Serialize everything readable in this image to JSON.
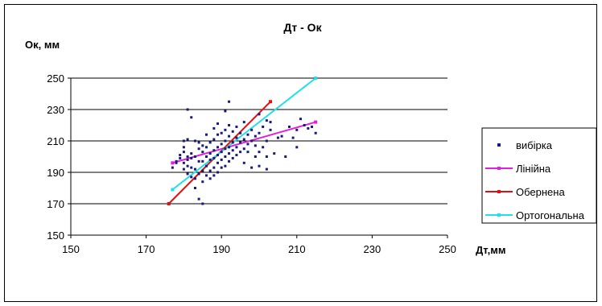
{
  "chart_data": {
    "type": "scatter",
    "title": "Дт - Ок",
    "xlabel": "Дт,мм",
    "ylabel": "Ок, мм",
    "xlim": [
      150,
      250
    ],
    "ylim": [
      150,
      250
    ],
    "xticks": [
      "150",
      "170",
      "190",
      "210",
      "230",
      "250"
    ],
    "yticks": [
      "150",
      "170",
      "190",
      "210",
      "230",
      "250"
    ],
    "grid": "horizontal",
    "legend_position": "right",
    "colors": {
      "sample": "#1a1a7a",
      "linear": "#e020e0",
      "inverse": "#e01010",
      "orthogonal": "#20e0e8"
    },
    "series": [
      {
        "name": "вибірка",
        "kind": "points",
        "points": [
          [
            177,
            193
          ],
          [
            178,
            196
          ],
          [
            178,
            197
          ],
          [
            179,
            199
          ],
          [
            179,
            201
          ],
          [
            180,
            192
          ],
          [
            180,
            196
          ],
          [
            180,
            203
          ],
          [
            180,
            206
          ],
          [
            180,
            210
          ],
          [
            181,
            189
          ],
          [
            181,
            194
          ],
          [
            181,
            198
          ],
          [
            181,
            200
          ],
          [
            181,
            211
          ],
          [
            181,
            230
          ],
          [
            182,
            187
          ],
          [
            182,
            193
          ],
          [
            182,
            199
          ],
          [
            182,
            202
          ],
          [
            182,
            225
          ],
          [
            183,
            180
          ],
          [
            183,
            186
          ],
          [
            183,
            192
          ],
          [
            183,
            200
          ],
          [
            183,
            210
          ],
          [
            184,
            173
          ],
          [
            184,
            189
          ],
          [
            184,
            197
          ],
          [
            184,
            205
          ],
          [
            184,
            209
          ],
          [
            185,
            170
          ],
          [
            185,
            184
          ],
          [
            185,
            191
          ],
          [
            185,
            197
          ],
          [
            185,
            203
          ],
          [
            185,
            207
          ],
          [
            186,
            188
          ],
          [
            186,
            194
          ],
          [
            186,
            200
          ],
          [
            186,
            206
          ],
          [
            186,
            214
          ],
          [
            187,
            186
          ],
          [
            187,
            191
          ],
          [
            187,
            198
          ],
          [
            187,
            202
          ],
          [
            187,
            209
          ],
          [
            188,
            188
          ],
          [
            188,
            193
          ],
          [
            188,
            199
          ],
          [
            188,
            204
          ],
          [
            188,
            211
          ],
          [
            188,
            218
          ],
          [
            189,
            190
          ],
          [
            189,
            196
          ],
          [
            189,
            201
          ],
          [
            189,
            206
          ],
          [
            189,
            214
          ],
          [
            189,
            221
          ],
          [
            190,
            193
          ],
          [
            190,
            198
          ],
          [
            190,
            203
          ],
          [
            190,
            208
          ],
          [
            190,
            215
          ],
          [
            191,
            194
          ],
          [
            191,
            200
          ],
          [
            191,
            205
          ],
          [
            191,
            210
          ],
          [
            191,
            217
          ],
          [
            191,
            229
          ],
          [
            192,
            197
          ],
          [
            192,
            202
          ],
          [
            192,
            206
          ],
          [
            192,
            213
          ],
          [
            192,
            220
          ],
          [
            192,
            235
          ],
          [
            193,
            199
          ],
          [
            193,
            204
          ],
          [
            193,
            209
          ],
          [
            193,
            216
          ],
          [
            194,
            201
          ],
          [
            194,
            206
          ],
          [
            194,
            212
          ],
          [
            194,
            219
          ],
          [
            195,
            203
          ],
          [
            195,
            209
          ],
          [
            195,
            215
          ],
          [
            196,
            196
          ],
          [
            196,
            205
          ],
          [
            196,
            211
          ],
          [
            196,
            222
          ],
          [
            197,
            203
          ],
          [
            197,
            208
          ],
          [
            197,
            214
          ],
          [
            198,
            193
          ],
          [
            198,
            210
          ],
          [
            198,
            217
          ],
          [
            199,
            200
          ],
          [
            199,
            207
          ],
          [
            199,
            213
          ],
          [
            200,
            194
          ],
          [
            200,
            203
          ],
          [
            200,
            215
          ],
          [
            200,
            227
          ],
          [
            201,
            206
          ],
          [
            201,
            219
          ],
          [
            202,
            192
          ],
          [
            202,
            200
          ],
          [
            202,
            210
          ],
          [
            202,
            223
          ],
          [
            203,
            217
          ],
          [
            203,
            222
          ],
          [
            204,
            202
          ],
          [
            205,
            212
          ],
          [
            206,
            213
          ],
          [
            207,
            200
          ],
          [
            208,
            219
          ],
          [
            209,
            212
          ],
          [
            210,
            206
          ],
          [
            210,
            217
          ],
          [
            211,
            224
          ],
          [
            212,
            220
          ],
          [
            213,
            218
          ],
          [
            214,
            219
          ],
          [
            215,
            215
          ]
        ]
      },
      {
        "name": "Лінійна",
        "kind": "line",
        "x": [
          177,
          215
        ],
        "y": [
          196,
          222
        ]
      },
      {
        "name": "Обернена",
        "kind": "line",
        "x": [
          176,
          203
        ],
        "y": [
          170,
          235
        ]
      },
      {
        "name": "Ортогональна",
        "kind": "line",
        "x": [
          177,
          215
        ],
        "y": [
          179,
          250
        ]
      }
    ]
  }
}
